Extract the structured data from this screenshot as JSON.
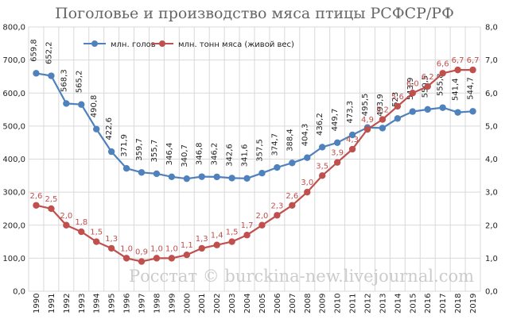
{
  "chart_data": {
    "type": "line",
    "title": "Поголовье и производство мяса птицы РСФСР/РФ",
    "watermark": "Росстат © burckina-new.livejournal.com",
    "categories": [
      "1990",
      "1991",
      "1992",
      "1993",
      "1994",
      "1995",
      "1996",
      "1997",
      "1998",
      "1999",
      "2000",
      "2001",
      "2002",
      "2003",
      "2004",
      "2005",
      "2006",
      "2007",
      "2008",
      "2009",
      "2010",
      "2011",
      "2012",
      "2013",
      "2014",
      "2015",
      "2016",
      "2017",
      "2018",
      "2019"
    ],
    "left_axis": {
      "ylim": [
        0,
        800
      ],
      "ticks": [
        "0,0",
        "100,0",
        "200,0",
        "300,0",
        "400,0",
        "500,0",
        "600,0",
        "700,0",
        "800,0"
      ]
    },
    "right_axis": {
      "ylim": [
        0,
        8
      ],
      "ticks": [
        "0,0",
        "1,0",
        "2,0",
        "3,0",
        "4,0",
        "5,0",
        "6,0",
        "7,0",
        "8,0"
      ]
    },
    "grid": true,
    "legend_position": "top-left",
    "series": [
      {
        "name": "млн. голов",
        "axis": "left",
        "color": "#4f81bd",
        "values": [
          659.8,
          652.2,
          568.3,
          565.2,
          490.8,
          422.6,
          371.9,
          359.7,
          355.7,
          346.4,
          340.7,
          346.8,
          346.2,
          342.6,
          341.6,
          357.5,
          374.7,
          388.4,
          404.3,
          436.2,
          449.7,
          473.3,
          495.5,
          493.9,
          523.0,
          543.9,
          550.5,
          555.8,
          541.4,
          544.7
        ],
        "labels": [
          "659,8",
          "652,2",
          "568,3",
          "565,2",
          "490,8",
          "422,6",
          "371,9",
          "359,7",
          "355,7",
          "346,4",
          "340,7",
          "346,8",
          "346,2",
          "342,6",
          "341,6",
          "357,5",
          "374,7",
          "388,4",
          "404,3",
          "436,2",
          "449,7",
          "473,3",
          "495,5",
          "493,9",
          "523",
          "543,9",
          "550,5",
          "555,8",
          "541,4",
          "544,7"
        ]
      },
      {
        "name": "млн. тонн мяса (живой вес)",
        "axis": "right",
        "color": "#c0504d",
        "values": [
          2.6,
          2.5,
          2.0,
          1.8,
          1.5,
          1.3,
          1.0,
          0.9,
          1.0,
          1.0,
          1.1,
          1.3,
          1.4,
          1.5,
          1.7,
          2.0,
          2.3,
          2.6,
          3.0,
          3.5,
          3.9,
          4.3,
          4.9,
          5.2,
          5.6,
          6.0,
          6.2,
          6.6,
          6.7,
          6.7
        ],
        "labels": [
          "2,6",
          "2,5",
          "2,0",
          "1,8",
          "1,5",
          "1,3",
          "1,0",
          "0,9",
          "1,0",
          "1,0",
          "1,1",
          "1,3",
          "1,4",
          "1,5",
          "1,7",
          "2,0",
          "2,3",
          "2,6",
          "3,0",
          "3,5",
          "3,9",
          "4,3",
          "4,9",
          "5,2",
          "5,6",
          "6,0",
          "6,2",
          "6,6",
          "6,7",
          "6,7"
        ]
      }
    ]
  }
}
